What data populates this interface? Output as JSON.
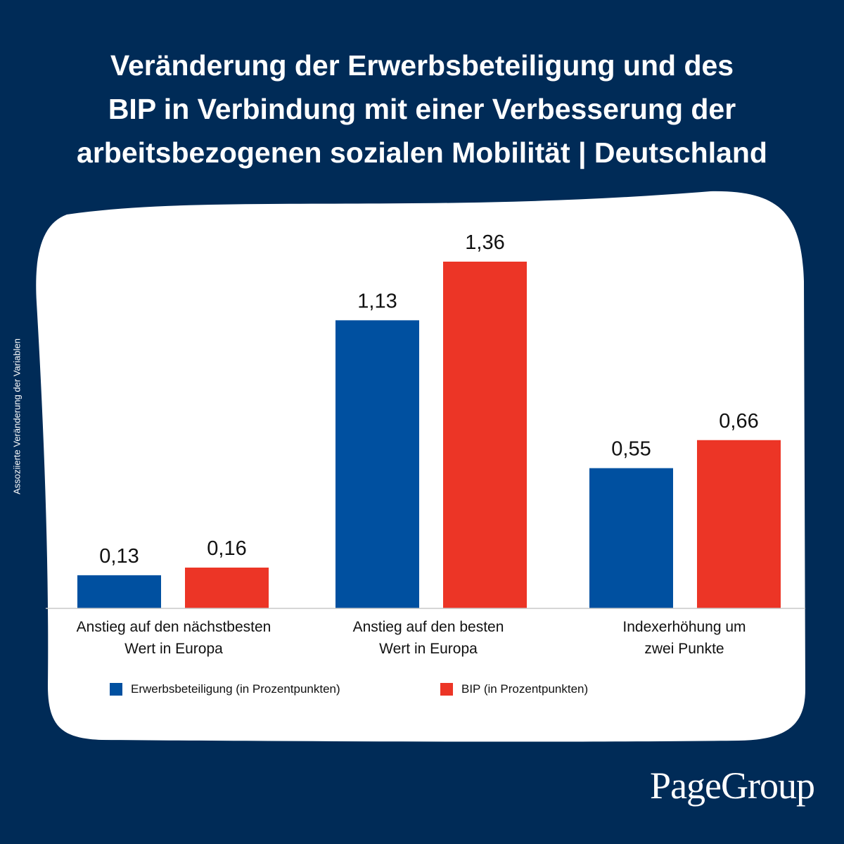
{
  "title_lines": [
    "Veränderung der Erwerbsbeteiligung und des",
    "BIP in Verbindung mit einer Verbesserung der",
    "arbeitsbezogenen sozialen Mobilität | Deutschland"
  ],
  "brand": "PageGroup",
  "colors": {
    "background": "#002b57",
    "panel": "#ffffff",
    "series_erwerb": "#0050a0",
    "series_bip": "#ec3526"
  },
  "chart_data": {
    "type": "bar",
    "title": "Veränderung der Erwerbsbeteiligung und des BIP in Verbindung mit einer Verbesserung der arbeitsbezogenen sozialen Mobilität | Deutschland",
    "ylabel": "Assoziierte Veränderung der Variablen",
    "xlabel": "",
    "categories": [
      [
        "Anstieg auf den nächstbesten",
        "Wert in Europa"
      ],
      [
        "Anstieg auf den besten",
        "Wert in Europa"
      ],
      [
        "Indexerhöhung um",
        "zwei Punkte"
      ]
    ],
    "series": [
      {
        "name": "Erwerbsbeteiligung (in Prozentpunkten)",
        "values": [
          0.13,
          1.13,
          0.55
        ],
        "labels": [
          "0,13",
          "1,13",
          "0,55"
        ]
      },
      {
        "name": "BIP (in Prozentpunkten)",
        "values": [
          0.16,
          1.36,
          0.66
        ],
        "labels": [
          "0,16",
          "1,36",
          "0,66"
        ]
      }
    ],
    "ylim": [
      0,
      1.36
    ],
    "grid": false,
    "legend_position": "bottom"
  }
}
